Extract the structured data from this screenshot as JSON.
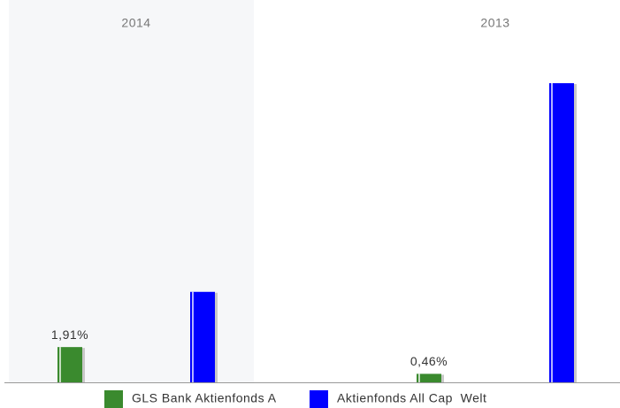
{
  "chart_data": {
    "type": "bar",
    "categories": [
      "2014",
      "2013"
    ],
    "series": [
      {
        "name": "GLS Bank Aktienfonds A",
        "color": "#3a8a2e",
        "values": [
          1.91,
          0.46
        ],
        "value_labels": [
          "1,91%",
          "0,46%"
        ]
      },
      {
        "name": "Aktienfonds All Cap  Welt",
        "color": "#0000ff",
        "values": [
          4.9,
          16.2
        ]
      }
    ]
  }
}
